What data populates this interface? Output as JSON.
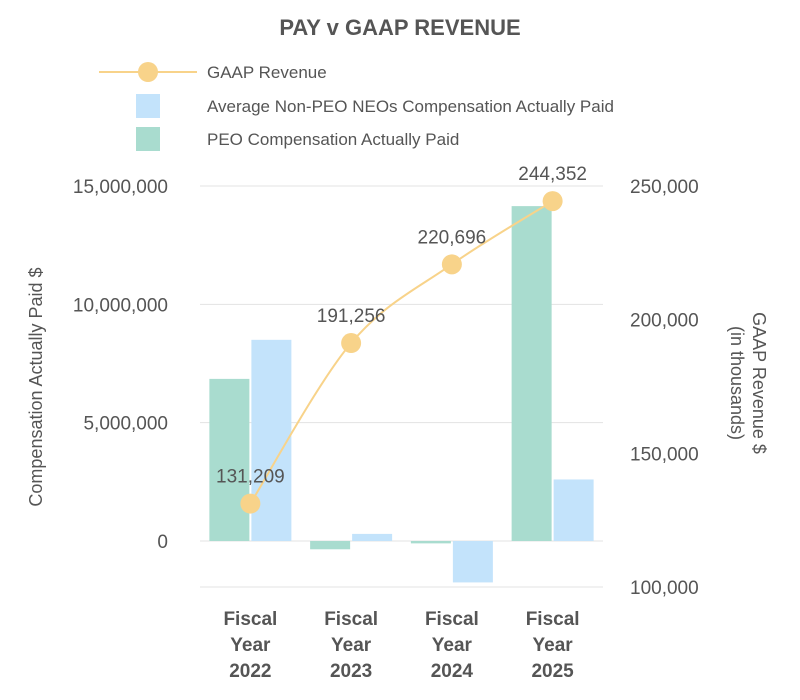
{
  "chart_data": {
    "type": "bar",
    "title": "PAY v GAAP REVENUE",
    "categories": [
      [
        "Fiscal",
        "Year",
        "2022"
      ],
      [
        "Fiscal",
        "Year",
        "2023"
      ],
      [
        "Fiscal",
        "Year",
        "2024"
      ],
      [
        "Fiscal",
        "Year",
        "2025"
      ]
    ],
    "ylabel": "Compensation Actually Paid $",
    "y2label": [
      "GAAP Revenue $",
      "(in thousands)"
    ],
    "ylim": [
      -2000000,
      15000000
    ],
    "y2lim": [
      100000,
      250000
    ],
    "yticks": [
      {
        "value": 0,
        "label": "0"
      },
      {
        "value": 5000000,
        "label": "5,000,000"
      },
      {
        "value": 10000000,
        "label": "10,000,000"
      },
      {
        "value": 15000000,
        "label": "15,000,000"
      }
    ],
    "y2ticks": [
      {
        "value": 100000,
        "label": "100,000"
      },
      {
        "value": 150000,
        "label": "150,000"
      },
      {
        "value": 200000,
        "label": "200,000"
      },
      {
        "value": 250000,
        "label": "250,000"
      }
    ],
    "legend": [
      {
        "name": "GAAP Revenue",
        "kind": "line",
        "color": "#f8d38a"
      },
      {
        "name": "Average Non-PEO NEOs Compensation Actually Paid",
        "kind": "bar",
        "color": "#c3e3fb"
      },
      {
        "name": "PEO Compensation Actually Paid",
        "kind": "bar",
        "color": "#a9dccf"
      }
    ],
    "series": [
      {
        "name": "PEO Compensation Actually Paid",
        "type": "bar",
        "axis": "left",
        "color": "#a9dccf",
        "values": [
          6850000,
          -350000,
          -100000,
          14150000
        ]
      },
      {
        "name": "Average Non-PEO NEOs Compensation Actually Paid",
        "type": "bar",
        "axis": "left",
        "color": "#c3e3fb",
        "values": [
          8500000,
          300000,
          -1750000,
          2600000
        ]
      },
      {
        "name": "GAAP Revenue",
        "type": "line",
        "axis": "right",
        "color": "#f8d38a",
        "values": [
          131209,
          191256,
          220696,
          244352
        ],
        "labels": [
          "131,209",
          "191,256",
          "220,696",
          "244,352"
        ]
      }
    ]
  }
}
